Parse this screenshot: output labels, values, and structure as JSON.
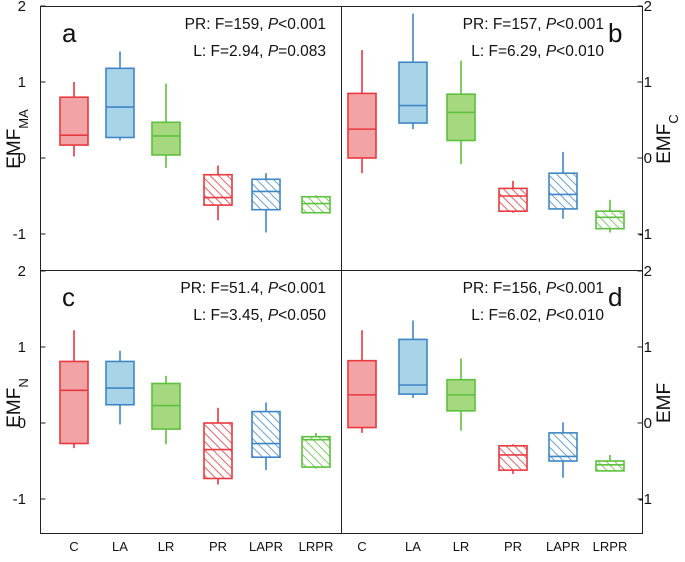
{
  "figure_title": "",
  "colors": {
    "red": {
      "stroke": "#e8393f",
      "fill": "#f2a3a6"
    },
    "blue": {
      "stroke": "#3f86c6",
      "fill": "#a9d3e6"
    },
    "green": {
      "stroke": "#5cc13c",
      "fill": "#a6d97f"
    }
  },
  "chart_data": [
    {
      "type": "box",
      "panel": "a",
      "ylabel": "EMF",
      "ylabel_sub": "MA",
      "ylabel_side": "left",
      "stats": [
        {
          "label": "PR: F=159, ",
          "p": "P",
          "rest": "<0.001"
        },
        {
          "label": "L: F=2.94, ",
          "p": "P",
          "rest": "=0.083"
        }
      ],
      "ylim": [
        -1.5,
        2
      ],
      "yticks": [
        -1,
        0,
        1,
        2
      ],
      "ytick_labels": [
        "-1",
        "0",
        "1",
        "2"
      ],
      "categories": [
        "C",
        "LA",
        "LR",
        "PR",
        "LAPR",
        "LRPR"
      ],
      "boxes": [
        {
          "color": "red",
          "hatched": false,
          "min": 0.02,
          "q1": 0.17,
          "median": 0.3,
          "q3": 0.8,
          "max": 1.0
        },
        {
          "color": "blue",
          "hatched": false,
          "min": 0.23,
          "q1": 0.27,
          "median": 0.67,
          "q3": 1.18,
          "max": 1.4
        },
        {
          "color": "green",
          "hatched": false,
          "min": -0.13,
          "q1": 0.04,
          "median": 0.29,
          "q3": 0.47,
          "max": 0.98
        },
        {
          "color": "red",
          "hatched": true,
          "min": -0.82,
          "q1": -0.62,
          "median": -0.52,
          "q3": -0.22,
          "max": -0.1
        },
        {
          "color": "blue",
          "hatched": true,
          "min": -0.98,
          "q1": -0.68,
          "median": -0.44,
          "q3": -0.28,
          "max": -0.2
        },
        {
          "color": "green",
          "hatched": true,
          "min": -0.73,
          "q1": -0.72,
          "median": -0.6,
          "q3": -0.51,
          "max": -0.49
        }
      ]
    },
    {
      "type": "box",
      "panel": "b",
      "ylabel": "EMF",
      "ylabel_sub": "C",
      "ylabel_side": "right",
      "stats": [
        {
          "label": "PR: F=157, ",
          "p": "P",
          "rest": "<0.001"
        },
        {
          "label": "L: F=6.29, ",
          "p": "P",
          "rest": "<0.010"
        }
      ],
      "ylim": [
        -1.5,
        2
      ],
      "yticks": [
        -1,
        0,
        1,
        2
      ],
      "ytick_labels": [
        "-1",
        "0",
        "1",
        "2"
      ],
      "categories": [
        "C",
        "LA",
        "LR",
        "PR",
        "LAPR",
        "LRPR"
      ],
      "boxes": [
        {
          "color": "red",
          "hatched": false,
          "min": -0.2,
          "q1": 0.0,
          "median": 0.38,
          "q3": 0.85,
          "max": 1.42
        },
        {
          "color": "blue",
          "hatched": false,
          "min": 0.38,
          "q1": 0.46,
          "median": 0.69,
          "q3": 1.26,
          "max": 1.9
        },
        {
          "color": "green",
          "hatched": false,
          "min": -0.08,
          "q1": 0.23,
          "median": 0.6,
          "q3": 0.84,
          "max": 1.28
        },
        {
          "color": "red",
          "hatched": true,
          "min": -0.72,
          "q1": -0.7,
          "median": -0.5,
          "q3": -0.4,
          "max": -0.3
        },
        {
          "color": "blue",
          "hatched": true,
          "min": -0.8,
          "q1": -0.67,
          "median": -0.48,
          "q3": -0.2,
          "max": 0.08
        },
        {
          "color": "green",
          "hatched": true,
          "min": -0.98,
          "q1": -0.93,
          "median": -0.78,
          "q3": -0.7,
          "max": -0.55
        }
      ]
    },
    {
      "type": "box",
      "panel": "c",
      "ylabel": "EMF",
      "ylabel_sub": "N",
      "ylabel_side": "left",
      "stats": [
        {
          "label": "PR: F=51.4, ",
          "p": "P",
          "rest": "<0.001"
        },
        {
          "label": "L: F=3.45, ",
          "p": "P",
          "rest": "<0.050"
        }
      ],
      "ylim": [
        -1.5,
        2
      ],
      "yticks": [
        -1,
        0,
        1,
        2
      ],
      "ytick_labels": [
        "-1",
        "0",
        "1",
        "2"
      ],
      "categories": [
        "C",
        "LA",
        "LR",
        "PR",
        "LAPR",
        "LRPR"
      ],
      "boxes": [
        {
          "color": "red",
          "hatched": false,
          "min": -0.33,
          "q1": -0.27,
          "median": 0.43,
          "q3": 0.81,
          "max": 1.22
        },
        {
          "color": "blue",
          "hatched": false,
          "min": -0.02,
          "q1": 0.24,
          "median": 0.46,
          "q3": 0.81,
          "max": 0.95
        },
        {
          "color": "green",
          "hatched": false,
          "min": -0.28,
          "q1": -0.08,
          "median": 0.23,
          "q3": 0.52,
          "max": 0.62
        },
        {
          "color": "red",
          "hatched": true,
          "min": -0.81,
          "q1": -0.73,
          "median": -0.35,
          "q3": 0.0,
          "max": 0.2
        },
        {
          "color": "blue",
          "hatched": true,
          "min": -0.62,
          "q1": -0.45,
          "median": -0.27,
          "q3": 0.15,
          "max": 0.27
        },
        {
          "color": "green",
          "hatched": true,
          "min": -0.6,
          "q1": -0.58,
          "median": -0.22,
          "q3": -0.18,
          "max": -0.13
        }
      ]
    },
    {
      "type": "box",
      "panel": "d",
      "ylabel": "EMF",
      "ylabel_sub": "",
      "ylabel_side": "right",
      "stats": [
        {
          "label": "PR: F=156, ",
          "p": "P",
          "rest": "<0.001"
        },
        {
          "label": "L: F=6.02, ",
          "p": "P",
          "rest": "<0.010"
        }
      ],
      "ylim": [
        -1.5,
        2
      ],
      "yticks": [
        -1,
        0,
        1,
        2
      ],
      "ytick_labels": [
        "-1",
        "0",
        "1",
        "2"
      ],
      "categories": [
        "C",
        "LA",
        "LR",
        "PR",
        "LAPR",
        "LRPR"
      ],
      "boxes": [
        {
          "color": "red",
          "hatched": false,
          "min": -0.13,
          "q1": -0.06,
          "median": 0.37,
          "q3": 0.82,
          "max": 1.22
        },
        {
          "color": "blue",
          "hatched": false,
          "min": 0.33,
          "q1": 0.38,
          "median": 0.5,
          "q3": 1.1,
          "max": 1.35
        },
        {
          "color": "green",
          "hatched": false,
          "min": -0.1,
          "q1": 0.16,
          "median": 0.37,
          "q3": 0.57,
          "max": 0.85
        },
        {
          "color": "red",
          "hatched": true,
          "min": -0.67,
          "q1": -0.62,
          "median": -0.42,
          "q3": -0.3,
          "max": -0.28
        },
        {
          "color": "blue",
          "hatched": true,
          "min": -0.72,
          "q1": -0.5,
          "median": -0.44,
          "q3": -0.13,
          "max": 0.01
        },
        {
          "color": "green",
          "hatched": true,
          "min": -0.64,
          "q1": -0.63,
          "median": -0.55,
          "q3": -0.5,
          "max": -0.42
        }
      ]
    }
  ]
}
